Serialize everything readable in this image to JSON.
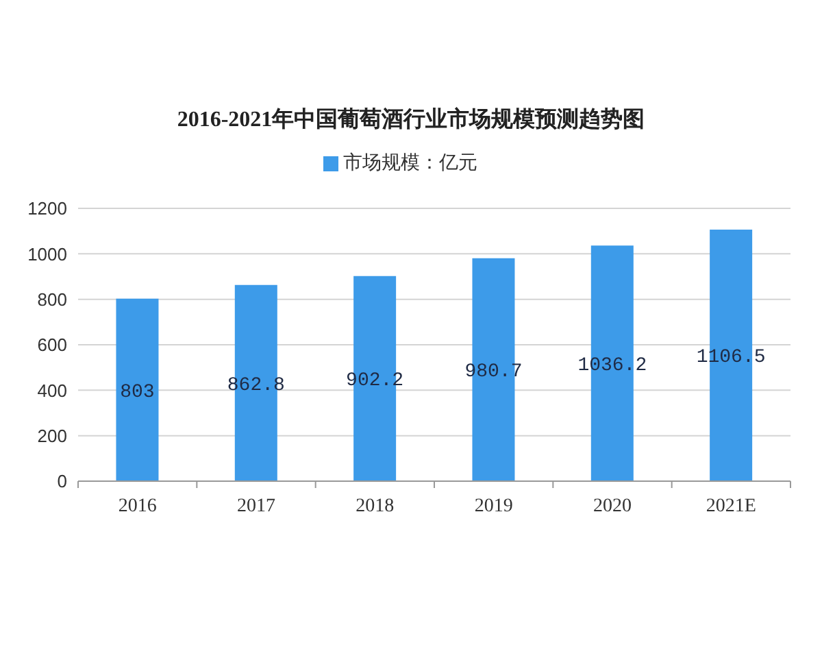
{
  "chart_data": {
    "type": "bar",
    "title": "2016-2021年中国葡萄酒行业市场规模预测趋势图",
    "categories": [
      "2016",
      "2017",
      "2018",
      "2019",
      "2020",
      "2021E"
    ],
    "series": [
      {
        "name": "市场规模：亿元",
        "color": "#3d9be9",
        "values": [
          803,
          862.8,
          902.2,
          980.7,
          1036.2,
          1106.5
        ]
      }
    ],
    "ylim": [
      0,
      1200
    ],
    "yticks": [
      0,
      200,
      400,
      600,
      800,
      1000,
      1200
    ],
    "grid": "y",
    "legend": "top",
    "data_labels": true
  }
}
